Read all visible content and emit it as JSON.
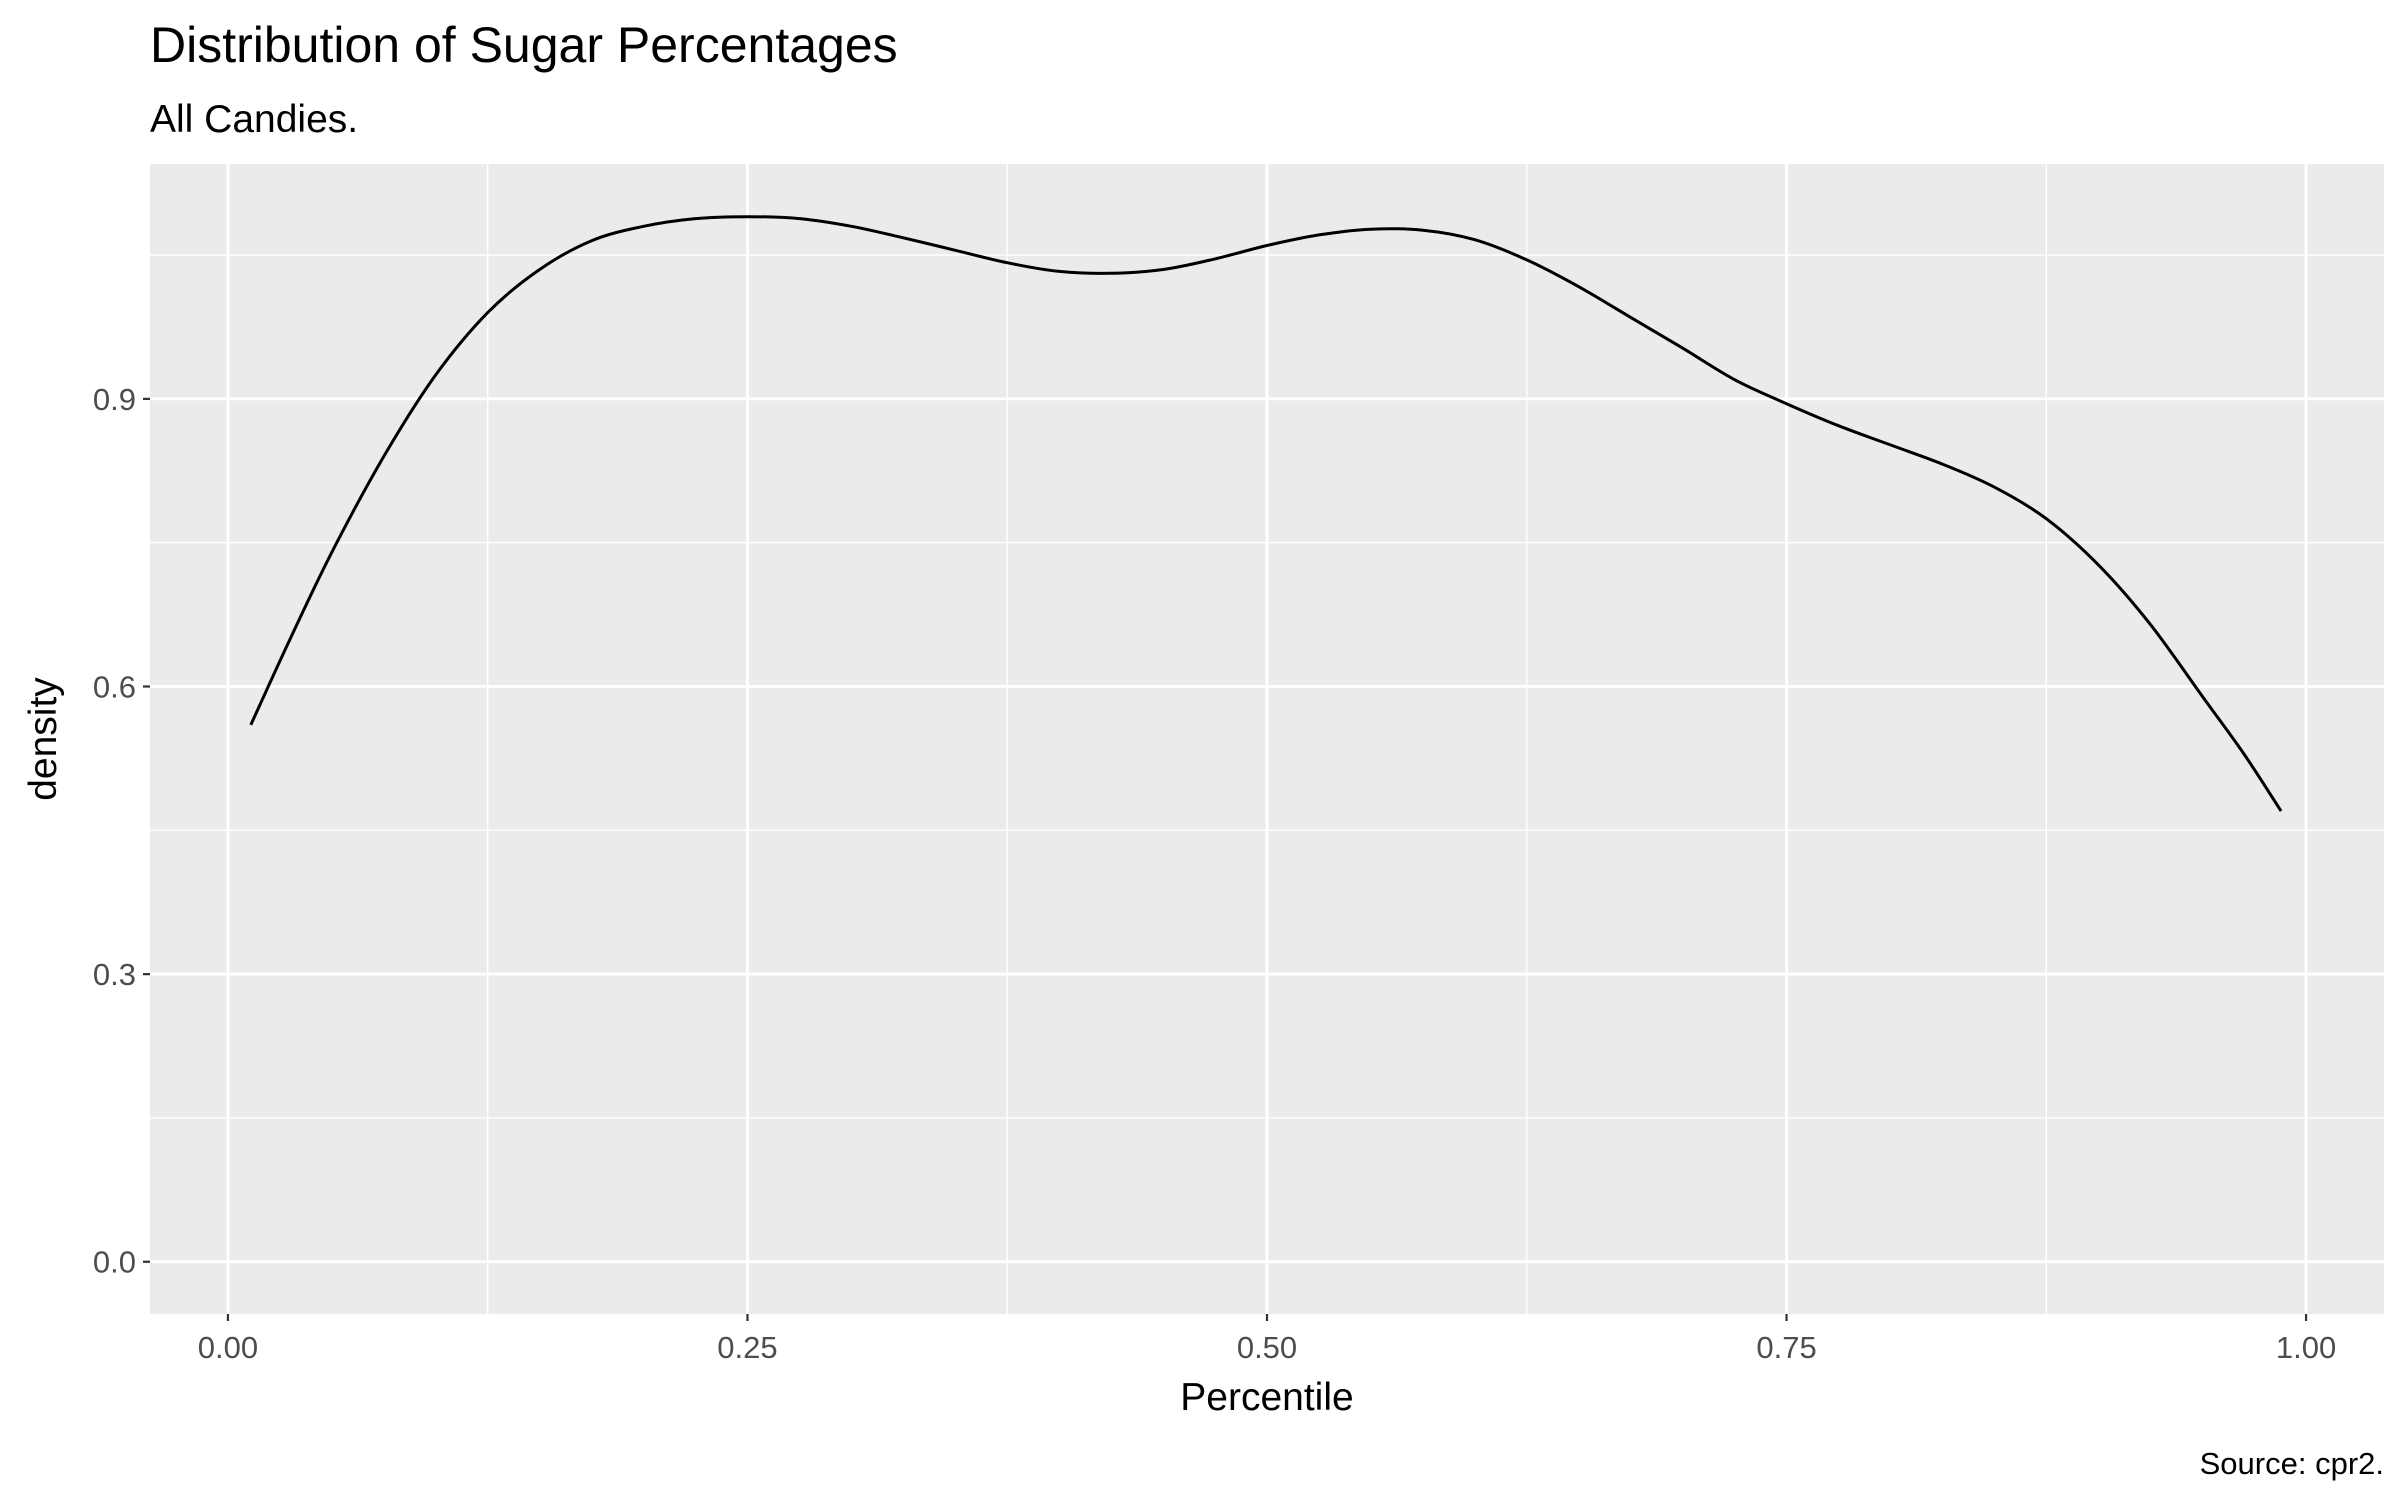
{
  "chart_data": {
    "type": "line",
    "title": "Distribution of Sugar Percentages",
    "subtitle": "All Candies.",
    "xlabel": "Percentile",
    "ylabel": "density",
    "caption": "Source: cpr2.",
    "xlim": [
      -0.0375,
      1.0375
    ],
    "ylim": [
      -0.0545,
      1.145
    ],
    "x_ticks": [
      {
        "value": 0.0,
        "label": "0.00"
      },
      {
        "value": 0.25,
        "label": "0.25"
      },
      {
        "value": 0.5,
        "label": "0.50"
      },
      {
        "value": 0.75,
        "label": "0.75"
      },
      {
        "value": 1.0,
        "label": "1.00"
      }
    ],
    "y_ticks": [
      {
        "value": 0.0,
        "label": "0.0"
      },
      {
        "value": 0.3,
        "label": "0.3"
      },
      {
        "value": 0.6,
        "label": "0.6"
      },
      {
        "value": 0.9,
        "label": "0.9"
      }
    ],
    "x_minor": [
      0.125,
      0.375,
      0.625,
      0.875
    ],
    "y_minor": [
      0.15,
      0.45,
      0.75,
      1.05
    ],
    "grid": true,
    "series": [
      {
        "color": "#000000",
        "x": [
          0.011,
          0.03,
          0.05,
          0.075,
          0.1,
          0.125,
          0.15,
          0.175,
          0.2,
          0.225,
          0.25,
          0.275,
          0.3,
          0.325,
          0.35,
          0.375,
          0.4,
          0.425,
          0.45,
          0.475,
          0.5,
          0.525,
          0.55,
          0.575,
          0.6,
          0.625,
          0.65,
          0.675,
          0.7,
          0.725,
          0.75,
          0.775,
          0.8,
          0.825,
          0.85,
          0.875,
          0.9,
          0.925,
          0.95,
          0.97,
          0.988
        ],
        "values": [
          0.56,
          0.65,
          0.74,
          0.84,
          0.925,
          0.99,
          1.035,
          1.065,
          1.08,
          1.088,
          1.09,
          1.088,
          1.08,
          1.068,
          1.055,
          1.042,
          1.033,
          1.031,
          1.035,
          1.046,
          1.06,
          1.071,
          1.077,
          1.076,
          1.066,
          1.045,
          1.017,
          0.985,
          0.953,
          0.92,
          0.895,
          0.872,
          0.852,
          0.832,
          0.808,
          0.775,
          0.727,
          0.665,
          0.59,
          0.53,
          0.47
        ]
      }
    ]
  }
}
